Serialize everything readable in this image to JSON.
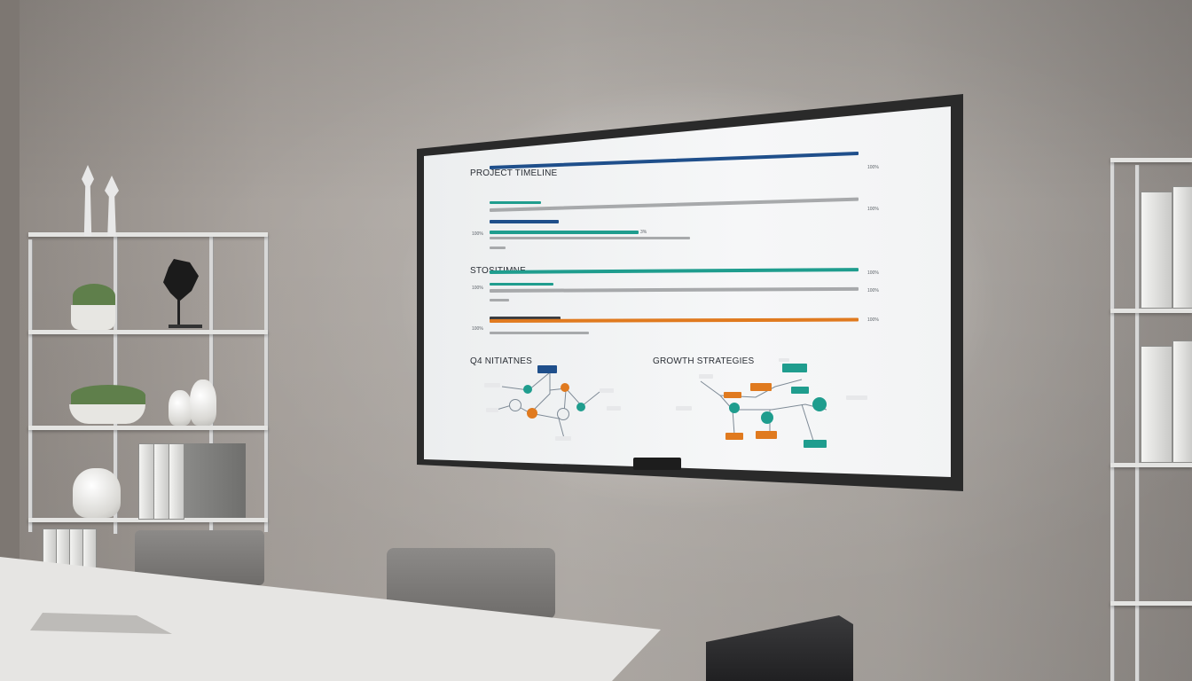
{
  "screen": {
    "section1_title": "PROJECT TIMELINE",
    "section2_title": "STOSITIMNE",
    "section3_title": "Q4 NITIATNES",
    "section4_title": "GROWTH STRATEGIES"
  },
  "timeline_rows": [
    {
      "label": "",
      "value": "100%"
    },
    {
      "label": "100%",
      "value": "3%"
    },
    {
      "label": "",
      "value": "100%"
    },
    {
      "label": "100%",
      "value": ""
    }
  ],
  "stosi_rows": [
    {
      "label": "",
      "value": "100%"
    },
    {
      "label": "100%",
      "value": "100%"
    },
    {
      "label": "",
      "value": "100%"
    },
    {
      "label": "100%",
      "value": ""
    }
  ],
  "colors": {
    "navy": "#1f4f8b",
    "teal": "#1f9d8e",
    "orange": "#e07a1f",
    "gray": "#a7a9ab",
    "dark": "#3a3d42"
  },
  "icons": [
    "flower-pot-icon",
    "vase-icon",
    "sculpture-icon",
    "binder-icon",
    "chair-icon"
  ]
}
